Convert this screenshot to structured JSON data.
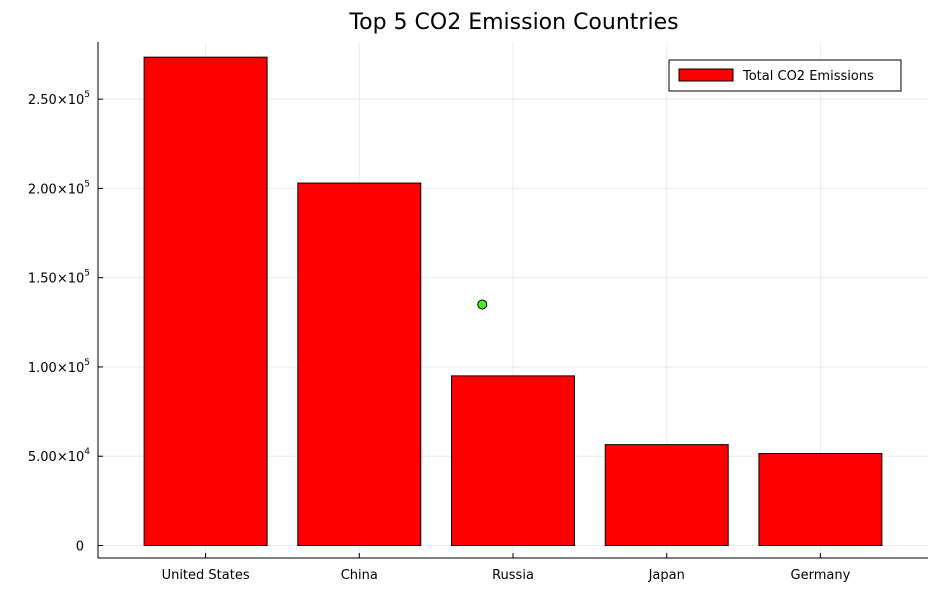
{
  "chart_data": {
    "type": "bar",
    "title": "Top 5 CO2 Emission Countries",
    "xlabel": "",
    "ylabel": "",
    "categories": [
      "United States",
      "China",
      "Russia",
      "Japan",
      "Germany"
    ],
    "series": [
      {
        "name": "Total CO2 Emissions",
        "values": [
          273500,
          203000,
          95000,
          56500,
          51500
        ],
        "color": "#ff0000"
      }
    ],
    "extra_point": {
      "category": "Russia",
      "offset": -0.2,
      "value": 135000,
      "color": "#4cef26"
    },
    "ylim": [
      -7000,
      282000
    ],
    "yticks": [
      {
        "value": 0,
        "mantissa": "0",
        "exp": ""
      },
      {
        "value": 50000,
        "mantissa": "5.00×10",
        "exp": "4"
      },
      {
        "value": 100000,
        "mantissa": "1.00×10",
        "exp": "5"
      },
      {
        "value": 150000,
        "mantissa": "1.50×10",
        "exp": "5"
      },
      {
        "value": 200000,
        "mantissa": "2.00×10",
        "exp": "5"
      },
      {
        "value": 250000,
        "mantissa": "2.50×10",
        "exp": "5"
      }
    ],
    "grid": true,
    "legend_position": "top-right"
  }
}
